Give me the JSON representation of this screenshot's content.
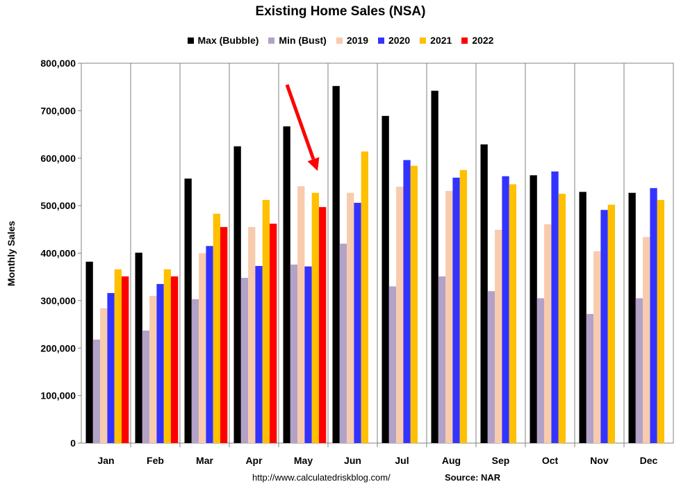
{
  "chart_data": {
    "type": "bar",
    "title": "Existing Home Sales (NSA)",
    "ylabel": "Monthly Sales",
    "xlabel": "",
    "ylim": [
      0,
      800000
    ],
    "yticks": [
      "0",
      "100,000",
      "200,000",
      "300,000",
      "400,000",
      "500,000",
      "600,000",
      "700,000",
      "800,000"
    ],
    "yticks_values": [
      0,
      100000,
      200000,
      300000,
      400000,
      500000,
      600000,
      700000,
      800000
    ],
    "grid": "vertical separators between months",
    "legend_position": "top",
    "categories": [
      "Jan",
      "Feb",
      "Mar",
      "Apr",
      "May",
      "Jun",
      "Jul",
      "Aug",
      "Sep",
      "Oct",
      "Nov",
      "Dec"
    ],
    "series": [
      {
        "name": "Max (Bubble)",
        "color": "#000000",
        "values": [
          382000,
          401000,
          557000,
          625000,
          667000,
          752000,
          689000,
          742000,
          629000,
          564000,
          529000,
          527000
        ]
      },
      {
        "name": "Min (Bust)",
        "color": "#B3A2C7",
        "values": [
          218000,
          237000,
          303000,
          348000,
          376000,
          420000,
          330000,
          351000,
          320000,
          305000,
          272000,
          305000
        ]
      },
      {
        "name": "2019",
        "color": "#F8CBAD",
        "values": [
          284000,
          310000,
          400000,
          455000,
          541000,
          527000,
          540000,
          531000,
          449000,
          461000,
          404000,
          434000
        ]
      },
      {
        "name": "2020",
        "color": "#3333FF",
        "values": [
          316000,
          335000,
          415000,
          373000,
          372000,
          506000,
          596000,
          559000,
          562000,
          572000,
          491000,
          537000
        ]
      },
      {
        "name": "2021",
        "color": "#FFC000",
        "values": [
          366000,
          366000,
          483000,
          512000,
          527000,
          614000,
          584000,
          575000,
          545000,
          525000,
          502000,
          512000
        ]
      },
      {
        "name": "2022",
        "color": "#FF0000",
        "values": [
          351000,
          351000,
          455000,
          462000,
          497000,
          null,
          null,
          null,
          null,
          null,
          null,
          null
        ]
      }
    ],
    "annotation": {
      "type": "arrow",
      "color": "#FF0000",
      "target": "May 2022"
    }
  },
  "footer": {
    "url": "http://www.calculatedriskblog.com/",
    "source": "Source: NAR"
  }
}
